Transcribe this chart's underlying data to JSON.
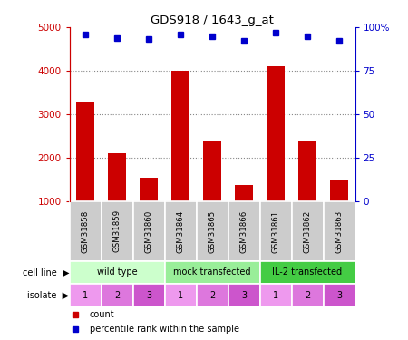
{
  "title": "GDS918 / 1643_g_at",
  "samples": [
    "GSM31858",
    "GSM31859",
    "GSM31860",
    "GSM31864",
    "GSM31865",
    "GSM31866",
    "GSM31861",
    "GSM31862",
    "GSM31863"
  ],
  "counts": [
    3300,
    2100,
    1550,
    4000,
    2400,
    1380,
    4100,
    2400,
    1470
  ],
  "percentiles": [
    96,
    94,
    93,
    96,
    95,
    92,
    97,
    95,
    92
  ],
  "bar_color": "#cc0000",
  "dot_color": "#0000cc",
  "ylim_left": [
    1000,
    5000
  ],
  "ylim_right": [
    0,
    100
  ],
  "yticks_left": [
    1000,
    2000,
    3000,
    4000,
    5000
  ],
  "yticks_right": [
    0,
    25,
    50,
    75,
    100
  ],
  "cell_line_labels": [
    "wild type",
    "mock transfected",
    "IL-2 transfected"
  ],
  "cell_line_colors": [
    "#ccffcc",
    "#99ee99",
    "#44cc44"
  ],
  "cell_line_spans": [
    [
      0,
      3
    ],
    [
      3,
      6
    ],
    [
      6,
      9
    ]
  ],
  "isolate_labels": [
    "1",
    "2",
    "3",
    "1",
    "2",
    "3",
    "1",
    "2",
    "3"
  ],
  "isolate_colors": [
    "#ee99ee",
    "#dd77dd",
    "#cc55cc",
    "#ee99ee",
    "#dd77dd",
    "#cc55cc",
    "#ee99ee",
    "#dd77dd",
    "#cc55cc"
  ],
  "sample_box_color": "#cccccc",
  "grid_color": "#888888",
  "background_color": "#ffffff"
}
